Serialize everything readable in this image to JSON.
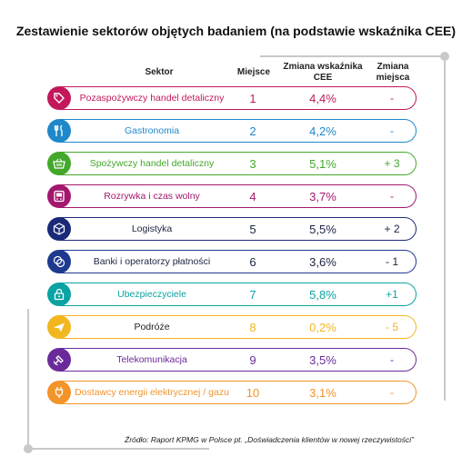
{
  "title": "Zestawienie sektorów objętych badaniem (na podstawie wskaźnika CEE)",
  "headers": {
    "sector": "Sektor",
    "place": "Miejsce",
    "change_cee": "Zmiana wskaźnika CEE",
    "change_place": "Zmiana miejsca"
  },
  "source": "Źródło: Raport KPMG w Polsce pt. „Doświadczenia klientów w nowej rzeczywistości”",
  "chart_data": {
    "type": "table",
    "columns": [
      "Sektor",
      "Miejsce",
      "Zmiana wskaźnika CEE",
      "Zmiana miejsca"
    ],
    "rows": [
      {
        "sector": "Pozaspożywczy handel detaliczny",
        "place": "1",
        "change_cee": "4,4%",
        "change_place": "-",
        "color": "#c2185b",
        "icon": "tag-icon"
      },
      {
        "sector": "Gastronomia",
        "place": "2",
        "change_cee": "4,2%",
        "change_place": "-",
        "color": "#1e88c9",
        "icon": "cutlery-icon"
      },
      {
        "sector": "Spożywczy handel detaliczny",
        "place": "3",
        "change_cee": "5,1%",
        "change_place": "+ 3",
        "color": "#43a82a",
        "icon": "basket-icon"
      },
      {
        "sector": "Rozrywka i czas wolny",
        "place": "4",
        "change_cee": "3,7%",
        "change_place": "-",
        "color": "#a3186e",
        "icon": "tv-icon"
      },
      {
        "sector": "Logistyka",
        "place": "5",
        "change_cee": "5,5%",
        "change_place": "+ 2",
        "color": "#1b2a78",
        "icon": "box-icon"
      },
      {
        "sector": "Banki i operatorzy płatności",
        "place": "6",
        "change_cee": "3,6%",
        "change_place": "- 1",
        "color": "#1e3a8f",
        "icon": "coins-icon"
      },
      {
        "sector": "Ubezpieczyciele",
        "place": "7",
        "change_cee": "5,8%",
        "change_place": "+1",
        "color": "#0aa3a3",
        "icon": "lock-icon"
      },
      {
        "sector": "Podróże",
        "place": "8",
        "change_cee": "0,2%",
        "change_place": "- 5",
        "color": "#f2b61f",
        "icon": "plane-icon"
      },
      {
        "sector": "Telekomunikacja",
        "place": "9",
        "change_cee": "3,5%",
        "change_place": "-",
        "color": "#6a2a9a",
        "icon": "satellite-icon"
      },
      {
        "sector": "Dostawcy energii elektrycznej / gazu",
        "place": "10",
        "change_cee": "3,1%",
        "change_place": "-",
        "color": "#f2942a",
        "icon": "plug-icon"
      }
    ]
  }
}
